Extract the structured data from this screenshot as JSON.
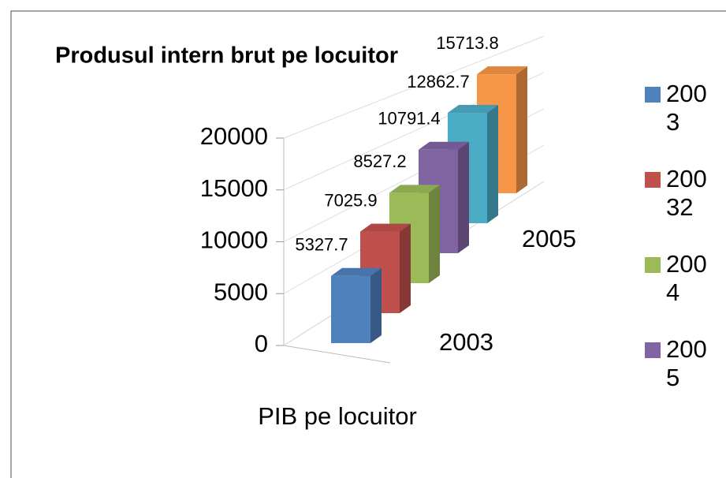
{
  "chart_data": {
    "type": "bar3d",
    "title": "Produsul intern brut pe locuitor",
    "categories": [
      "PIB pe locuitor"
    ],
    "series": [
      {
        "name": "2003",
        "color": "#4f81bd",
        "values": [
          5327.7
        ]
      },
      {
        "name": "20032",
        "color": "#c0504d",
        "values": [
          7025.9
        ]
      },
      {
        "name": "2004",
        "color": "#9bbb59",
        "values": [
          8527.2
        ]
      },
      {
        "name": "2005",
        "color": "#8064a2",
        "values": [
          10791.4
        ]
      },
      {
        "name": null,
        "color": "#4bacc6",
        "values": [
          12862.7
        ]
      },
      {
        "name": null,
        "color": "#f79646",
        "values": [
          15713.8
        ]
      }
    ],
    "depth_axis_labels": [
      "2003",
      "2005"
    ],
    "ylim": [
      0,
      20000
    ],
    "yticks": [
      0,
      5000,
      10000,
      15000,
      20000
    ],
    "grid": true,
    "legend": "right"
  }
}
